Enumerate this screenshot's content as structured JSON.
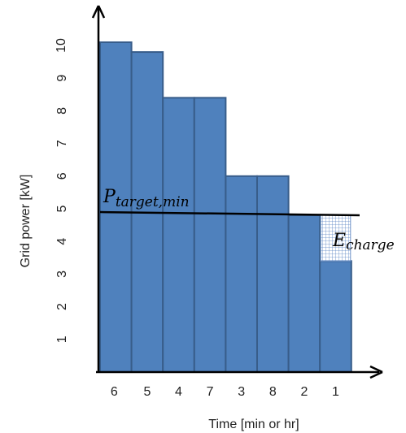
{
  "chart_data": {
    "type": "bar",
    "categories": [
      "6",
      "5",
      "4",
      "7",
      "3",
      "8",
      "2",
      "1"
    ],
    "values": [
      10.1,
      9.8,
      8.4,
      8.4,
      6.0,
      6.0,
      4.8,
      3.4
    ],
    "xlabel": "Time [min or hr]",
    "ylabel": "Grid power [kW]",
    "yticks": [
      "1",
      "2",
      "3",
      "4",
      "5",
      "6",
      "7",
      "8",
      "9",
      "10"
    ],
    "ylim": [
      0,
      11.2
    ],
    "grid": false,
    "bar_color": "#4F81BD",
    "bar_edge_color": "#385D8A",
    "target_line": {
      "label": "P",
      "label_subscript": "target,min",
      "value_start": 4.9,
      "value_end": 4.8,
      "color": "#000000"
    },
    "charge_area": {
      "label": "E",
      "label_subscript": "charge",
      "bar_index": 7,
      "from_value": 3.4,
      "to_value": 4.8,
      "pattern": "grid-hatch"
    }
  }
}
